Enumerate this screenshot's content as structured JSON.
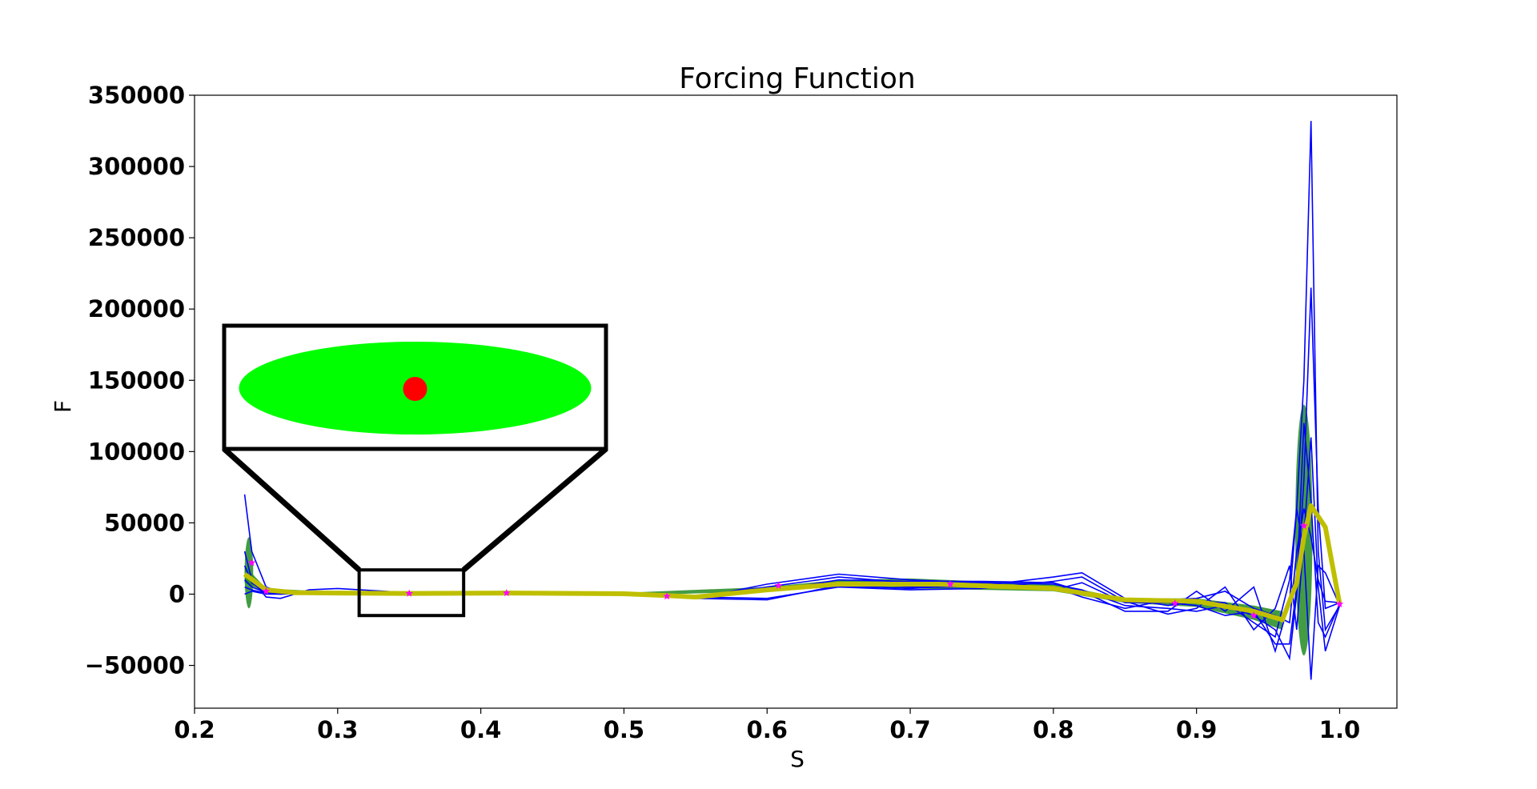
{
  "chart_data": {
    "type": "line",
    "title": "Forcing Function",
    "xlabel": "S",
    "ylabel": "F",
    "xlim": [
      0.2,
      1.04
    ],
    "ylim": [
      -80000,
      350000
    ],
    "xticks": [
      0.2,
      0.3,
      0.4,
      0.5,
      0.6,
      0.7,
      0.8,
      0.9,
      1.0
    ],
    "xtick_labels": [
      "0.2",
      "0.3",
      "0.4",
      "0.5",
      "0.6",
      "0.7",
      "0.8",
      "0.9",
      "1.0"
    ],
    "yticks": [
      -50000,
      0,
      50000,
      100000,
      150000,
      200000,
      250000,
      300000,
      350000
    ],
    "ytick_labels": [
      "−50000",
      "0",
      "50000",
      "100000",
      "150000",
      "200000",
      "250000",
      "300000",
      "350000"
    ],
    "grid": false,
    "colors": {
      "demonstrations": "#0000ff",
      "mean": "#bfbf00",
      "uncertainty": "#228b22",
      "waypoints": "#ff00ff",
      "zoom_ellipse": "#00ff00",
      "zoom_point": "#ff0000"
    },
    "series": [
      {
        "x": [
          0.235,
          0.24,
          0.25,
          0.26,
          0.28,
          0.3,
          0.35,
          0.4,
          0.45,
          0.5,
          0.55,
          0.6,
          0.65,
          0.7,
          0.75,
          0.8,
          0.82,
          0.85,
          0.88,
          0.9,
          0.92,
          0.94,
          0.955,
          0.965,
          0.97,
          0.975,
          0.98,
          0.985,
          0.99,
          1.0
        ],
        "values": [
          70000,
          30000,
          5000,
          1500,
          2000,
          1500,
          500,
          800,
          700,
          400,
          -1500,
          5000,
          12000,
          8000,
          6000,
          12000,
          15000,
          -3000,
          -8000,
          -5000,
          -6000,
          -20000,
          -30000,
          10000,
          60000,
          150000,
          332000,
          30000,
          -25000,
          -8000
        ]
      },
      {
        "x": [
          0.235,
          0.24,
          0.25,
          0.26,
          0.28,
          0.3,
          0.35,
          0.4,
          0.45,
          0.5,
          0.55,
          0.6,
          0.65,
          0.7,
          0.75,
          0.8,
          0.82,
          0.85,
          0.88,
          0.9,
          0.92,
          0.94,
          0.955,
          0.965,
          0.97,
          0.975,
          0.98,
          0.985,
          0.99,
          1.0
        ],
        "values": [
          30000,
          10000,
          -2000,
          -3000,
          3000,
          4000,
          1000,
          600,
          400,
          -500,
          -3000,
          7000,
          14000,
          10000,
          8000,
          7000,
          3000,
          -8000,
          -10000,
          -12000,
          -8000,
          -15000,
          -25000,
          -45000,
          0,
          80000,
          215000,
          60000,
          -10000,
          -6000
        ]
      },
      {
        "x": [
          0.235,
          0.24,
          0.25,
          0.26,
          0.28,
          0.3,
          0.35,
          0.4,
          0.45,
          0.5,
          0.55,
          0.6,
          0.65,
          0.7,
          0.75,
          0.8,
          0.82,
          0.85,
          0.88,
          0.9,
          0.92,
          0.94,
          0.955,
          0.965,
          0.97,
          0.975,
          0.98,
          0.985,
          0.99,
          1.0
        ],
        "values": [
          20000,
          8000,
          1000,
          0,
          1000,
          1500,
          800,
          700,
          500,
          0,
          -2000,
          -3000,
          5000,
          3000,
          4000,
          9000,
          12000,
          -5000,
          -14000,
          -10000,
          5000,
          -25000,
          -10000,
          20000,
          -25000,
          40000,
          110000,
          5000,
          -40000,
          -8000
        ]
      },
      {
        "x": [
          0.235,
          0.24,
          0.25,
          0.26,
          0.28,
          0.3,
          0.35,
          0.4,
          0.45,
          0.5,
          0.55,
          0.6,
          0.65,
          0.7,
          0.75,
          0.8,
          0.82,
          0.85,
          0.88,
          0.9,
          0.92,
          0.94,
          0.955,
          0.965,
          0.97,
          0.975,
          0.98,
          0.985,
          0.99,
          1.0
        ],
        "values": [
          10000,
          5000,
          1000,
          500,
          1500,
          1000,
          600,
          500,
          300,
          200,
          -1000,
          2000,
          10000,
          9000,
          9000,
          8000,
          2000,
          -12000,
          -12000,
          2000,
          -12000,
          5000,
          -40000,
          -5000,
          60000,
          30000,
          -60000,
          20000,
          15000,
          -8000
        ]
      },
      {
        "x": [
          0.235,
          0.24,
          0.25,
          0.26,
          0.28,
          0.3,
          0.35,
          0.4,
          0.45,
          0.5,
          0.55,
          0.6,
          0.65,
          0.7,
          0.75,
          0.8,
          0.82,
          0.85,
          0.88,
          0.9,
          0.92,
          0.94,
          0.955,
          0.965,
          0.97,
          0.975,
          0.98,
          0.985,
          0.99,
          1.0
        ],
        "values": [
          5000,
          3000,
          500,
          200,
          800,
          500,
          300,
          300,
          200,
          100,
          -2000,
          4000,
          8000,
          5000,
          5000,
          3000,
          8000,
          -6000,
          -6000,
          -8000,
          -15000,
          -12000,
          -35000,
          -35000,
          5000,
          120000,
          65000,
          -20000,
          -30000,
          -7000
        ]
      },
      {
        "x": [
          0.235,
          0.24,
          0.25,
          0.26,
          0.28,
          0.3,
          0.35,
          0.4,
          0.45,
          0.5,
          0.55,
          0.6,
          0.65,
          0.7,
          0.75,
          0.8,
          0.82,
          0.85,
          0.88,
          0.9,
          0.92,
          0.94,
          0.955,
          0.965,
          0.97,
          0.975,
          0.98,
          0.985,
          0.99,
          1.0
        ],
        "values": [
          0,
          2000,
          0,
          0,
          500,
          300,
          200,
          200,
          100,
          0,
          -3000,
          -4000,
          6000,
          4000,
          7000,
          5000,
          -2000,
          -10000,
          -4000,
          -3000,
          2000,
          -10000,
          -15000,
          -20000,
          30000,
          60000,
          40000,
          10000,
          -5000,
          -6000
        ]
      }
    ],
    "mean": {
      "x": [
        0.235,
        0.25,
        0.27,
        0.3,
        0.35,
        0.42,
        0.5,
        0.53,
        0.55,
        0.6,
        0.65,
        0.72,
        0.8,
        0.85,
        0.9,
        0.94,
        0.96,
        0.97,
        0.975,
        0.98,
        0.99,
        1.0
      ],
      "values": [
        14000,
        3000,
        1000,
        800,
        500,
        800,
        300,
        -1000,
        -2000,
        3000,
        7000,
        7000,
        4000,
        -4000,
        -5000,
        -12000,
        -18000,
        8000,
        40000,
        62000,
        47000,
        -7000
      ]
    },
    "uncertainty_band": {
      "x": [
        0.235,
        0.25,
        0.3,
        0.35,
        0.4,
        0.5,
        0.6,
        0.65,
        0.7,
        0.8,
        0.85,
        0.9,
        0.94,
        0.96
      ],
      "lower": [
        8000,
        1000,
        500,
        0,
        0,
        -1000,
        2000,
        5000,
        4000,
        2000,
        -6000,
        -9000,
        -18000,
        -25000
      ],
      "upper": [
        20000,
        4000,
        1500,
        1000,
        1500,
        1000,
        5000,
        10000,
        11000,
        7000,
        -3000,
        -3000,
        -8000,
        -12000
      ]
    },
    "uncertainty_ellipses": [
      {
        "x": 0.238,
        "y": 15000,
        "rx": 0.003,
        "ry": 25000
      },
      {
        "x": 0.975,
        "y": 45000,
        "rx": 0.006,
        "ry": 88000
      }
    ],
    "waypoints": {
      "x": [
        0.24,
        0.25,
        0.35,
        0.418,
        0.53,
        0.608,
        0.728,
        0.885,
        0.94,
        0.975,
        1.0
      ],
      "values": [
        22000,
        2000,
        500,
        800,
        -1500,
        6000,
        7000,
        -6500,
        -15000,
        48000,
        -7000
      ]
    },
    "inset": {
      "zoom_region": {
        "x": [
          0.315,
          0.388
        ],
        "y": [
          -15000,
          17000
        ]
      }
    }
  }
}
